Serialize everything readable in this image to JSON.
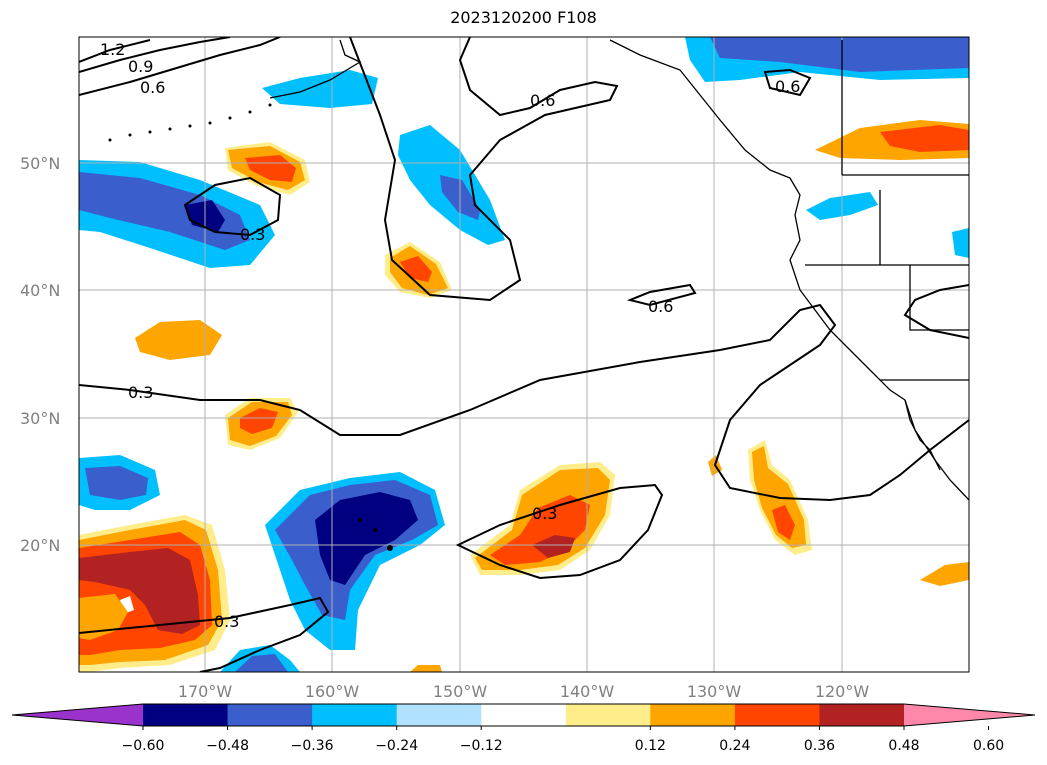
{
  "title": "2023120200 F108",
  "lat_labels": [
    "50°N",
    "40°N",
    "30°N",
    "20°N"
  ],
  "lon_labels": [
    "170°W",
    "160°W",
    "150°W",
    "140°W",
    "130°W",
    "120°W"
  ],
  "colorbar": {
    "tick_labels": [
      "−0.60",
      "−0.48",
      "−0.36",
      "−0.24",
      "−0.12",
      "0.12",
      "0.24",
      "0.36",
      "0.48",
      "0.60"
    ],
    "colors": [
      "#9933cc",
      "#000080",
      "#3a5fcd",
      "#00bfff",
      "#b0e2ff",
      "#ffffff",
      "#ffec8b",
      "#ffa500",
      "#ff4500",
      "#b22222",
      "#ff88aa"
    ]
  },
  "contour_labels": [
    "1.2",
    "0.9",
    "0.6",
    "0.6",
    "0.6",
    "0.6",
    "0.3",
    "0.3",
    "0.3",
    "0.3"
  ],
  "legend_colors": {
    "coastline": "#000000",
    "contour": "#000000",
    "grid": "#b0b0b0"
  }
}
